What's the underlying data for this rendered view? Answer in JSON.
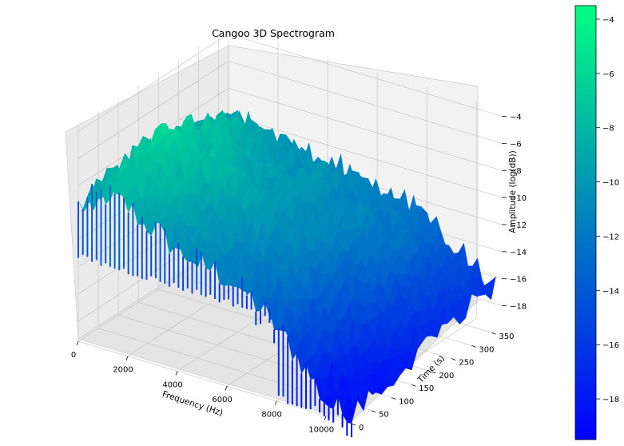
{
  "chart_data": {
    "type": "surface3d",
    "title": "Cangoo 3D Spectrogram",
    "xlabel": "Frequency (Hz)",
    "ylabel": "Time (s)",
    "zlabel": "Amplitude (log(dB))",
    "xlim": [
      0,
      11025
    ],
    "ylim": [
      0,
      375
    ],
    "zlim": [
      -19.5,
      -3.5
    ],
    "x_ticks": [
      "0",
      "2000",
      "4000",
      "6000",
      "8000",
      "10000"
    ],
    "y_ticks": [
      "0",
      "50",
      "100",
      "150",
      "200",
      "250",
      "300",
      "350"
    ],
    "z_ticks": [
      "−4",
      "−6",
      "−8",
      "−10",
      "−12",
      "−14",
      "−16",
      "−18"
    ],
    "colorbar": {
      "colormap": "winter",
      "range": [
        -19.5,
        -3.5
      ],
      "ticks": [
        "−4",
        "−6",
        "−8",
        "−10",
        "−12",
        "−14",
        "−16",
        "−18"
      ],
      "color_low": "#0000ff",
      "color_high": "#00ff80"
    },
    "surface_profile": {
      "description_free": true,
      "frequency_points": [
        0,
        1000,
        2000,
        3000,
        4000,
        5000,
        6000,
        7000,
        8000,
        9000,
        10000,
        11000
      ],
      "time_points": [
        0,
        50,
        100,
        150,
        200,
        250,
        300,
        350
      ],
      "amplitude": [
        [
          -9.5,
          -8.0,
          -8.5,
          -9.5,
          -10.5,
          -11.0,
          -11.5,
          -12.5,
          -14.0,
          -16.0,
          -18.5,
          -19.0
        ],
        [
          -9.0,
          -7.5,
          -8.0,
          -9.0,
          -10.0,
          -10.5,
          -11.5,
          -12.0,
          -13.5,
          -15.5,
          -18.0,
          -18.5
        ],
        [
          -8.5,
          -7.0,
          -7.5,
          -8.5,
          -9.5,
          -10.0,
          -11.0,
          -11.5,
          -13.0,
          -15.0,
          -17.5,
          -18.0
        ],
        [
          -8.5,
          -6.5,
          -7.0,
          -8.0,
          -9.0,
          -9.5,
          -10.5,
          -11.0,
          -12.5,
          -14.0,
          -16.5,
          -17.5
        ],
        [
          -9.0,
          -7.0,
          -7.5,
          -8.5,
          -9.5,
          -10.0,
          -10.5,
          -11.0,
          -12.0,
          -13.5,
          -15.5,
          -17.0
        ],
        [
          -9.5,
          -7.5,
          -8.0,
          -9.0,
          -10.0,
          -10.0,
          -10.5,
          -11.0,
          -12.0,
          -13.0,
          -15.0,
          -16.5
        ],
        [
          -10.0,
          -8.5,
          -9.0,
          -9.5,
          -10.5,
          -10.5,
          -11.0,
          -11.5,
          -12.0,
          -13.0,
          -14.5,
          -16.0
        ],
        [
          -10.5,
          -9.5,
          -10.0,
          -10.5,
          -11.0,
          -11.0,
          -11.5,
          -12.0,
          -12.5,
          -13.5,
          -15.0,
          -16.5
        ]
      ]
    }
  }
}
